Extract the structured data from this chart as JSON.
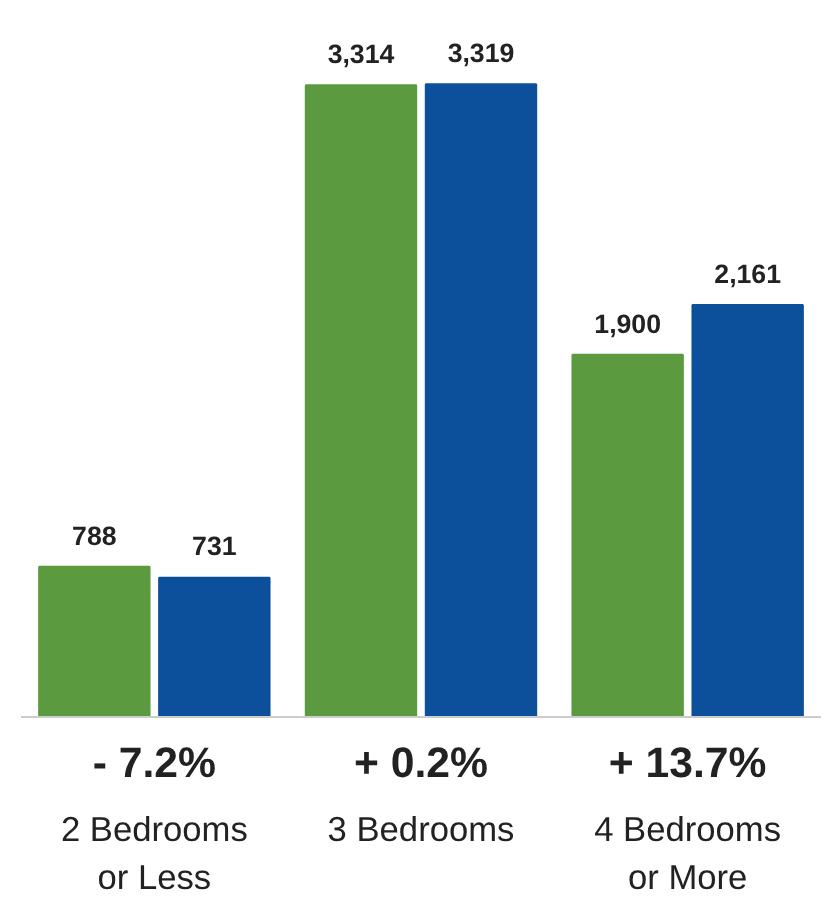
{
  "chart_data": {
    "type": "bar",
    "categories": [
      "2 Bedrooms\nor Less",
      "3 Bedrooms",
      "4 Bedrooms\nor More"
    ],
    "series": [
      {
        "color": "#5b9a3e",
        "values": [
          788,
          3314,
          1900
        ],
        "value_labels": [
          "788",
          "3,314",
          "1,900"
        ]
      },
      {
        "color": "#0c4f9a",
        "values": [
          731,
          3319,
          2161
        ],
        "value_labels": [
          "731",
          "3,319",
          "2,161"
        ]
      }
    ],
    "grid": false,
    "tick_labels": "x",
    "annotations": [
      "- 7.2%",
      "+ 0.2%",
      "+ 13.7%"
    ]
  }
}
